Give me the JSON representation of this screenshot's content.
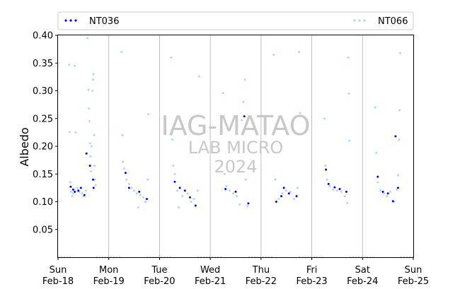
{
  "chart_data": {
    "type": "scatter",
    "ylabel": "Albedo",
    "ylim": [
      0.0,
      0.4
    ],
    "yticks": [
      "0.05",
      "0.10",
      "0.15",
      "0.20",
      "0.25",
      "0.30",
      "0.35",
      "0.40"
    ],
    "ytick_values": [
      0.05,
      0.1,
      0.15,
      0.2,
      0.25,
      0.3,
      0.35,
      0.4
    ],
    "xlim": [
      0,
      7
    ],
    "xticks": [
      {
        "day": "Sun",
        "date": "Feb-18"
      },
      {
        "day": "Mon",
        "date": "Feb-19"
      },
      {
        "day": "Tue",
        "date": "Feb-20"
      },
      {
        "day": "Wed",
        "date": "Feb-21"
      },
      {
        "day": "Thu",
        "date": "Feb-22"
      },
      {
        "day": "Fri",
        "date": "Feb-23"
      },
      {
        "day": "Sat",
        "date": "Feb-24"
      },
      {
        "day": "Sun",
        "date": "Feb-25"
      }
    ],
    "grid": "vertical",
    "legend_placement": "top",
    "watermark": [
      "IAG-MATAO",
      "LAB MICRO",
      "2024"
    ],
    "series": [
      {
        "name": "NT036",
        "color": "#0000ff",
        "marker": "dot",
        "points": [
          {
            "x": 0.25,
            "y": 0.127
          },
          {
            "x": 0.3,
            "y": 0.122
          },
          {
            "x": 0.33,
            "y": 0.118
          },
          {
            "x": 0.4,
            "y": 0.12
          },
          {
            "x": 0.45,
            "y": 0.125
          },
          {
            "x": 0.52,
            "y": 0.112
          },
          {
            "x": 0.56,
            "y": 0.187
          },
          {
            "x": 0.63,
            "y": 0.165
          },
          {
            "x": 0.69,
            "y": 0.14
          },
          {
            "x": 0.7,
            "y": 0.125
          },
          {
            "x": 1.33,
            "y": 0.152
          },
          {
            "x": 1.4,
            "y": 0.125
          },
          {
            "x": 1.6,
            "y": 0.118
          },
          {
            "x": 1.75,
            "y": 0.105
          },
          {
            "x": 2.3,
            "y": 0.136
          },
          {
            "x": 2.4,
            "y": 0.125
          },
          {
            "x": 2.5,
            "y": 0.12
          },
          {
            "x": 2.6,
            "y": 0.108
          },
          {
            "x": 2.71,
            "y": 0.093
          },
          {
            "x": 3.3,
            "y": 0.123
          },
          {
            "x": 3.5,
            "y": 0.118
          },
          {
            "x": 3.67,
            "y": 0.254
          },
          {
            "x": 3.75,
            "y": 0.097
          },
          {
            "x": 4.3,
            "y": 0.1
          },
          {
            "x": 4.4,
            "y": 0.11
          },
          {
            "x": 4.45,
            "y": 0.125
          },
          {
            "x": 4.55,
            "y": 0.115
          },
          {
            "x": 4.7,
            "y": 0.11
          },
          {
            "x": 5.28,
            "y": 0.158
          },
          {
            "x": 5.33,
            "y": 0.132
          },
          {
            "x": 5.45,
            "y": 0.126
          },
          {
            "x": 5.55,
            "y": 0.123
          },
          {
            "x": 5.68,
            "y": 0.118
          },
          {
            "x": 6.3,
            "y": 0.145
          },
          {
            "x": 6.4,
            "y": 0.118
          },
          {
            "x": 6.5,
            "y": 0.115
          },
          {
            "x": 6.6,
            "y": 0.101
          },
          {
            "x": 6.65,
            "y": 0.218
          },
          {
            "x": 6.7,
            "y": 0.125
          }
        ]
      },
      {
        "name": "NT066",
        "color": "#add8e6",
        "marker": "dot",
        "points": [
          {
            "x": 0.22,
            "y": 0.347
          },
          {
            "x": 0.23,
            "y": 0.226
          },
          {
            "x": 0.24,
            "y": 0.135
          },
          {
            "x": 0.26,
            "y": 0.118
          },
          {
            "x": 0.28,
            "y": 0.11
          },
          {
            "x": 0.3,
            "y": 0.115
          },
          {
            "x": 0.33,
            "y": 0.345
          },
          {
            "x": 0.35,
            "y": 0.225
          },
          {
            "x": 0.38,
            "y": 0.125
          },
          {
            "x": 0.42,
            "y": 0.118
          },
          {
            "x": 0.47,
            "y": 0.115
          },
          {
            "x": 0.5,
            "y": 0.11
          },
          {
            "x": 0.55,
            "y": 0.12
          },
          {
            "x": 0.58,
            "y": 0.395
          },
          {
            "x": 0.6,
            "y": 0.302
          },
          {
            "x": 0.61,
            "y": 0.268
          },
          {
            "x": 0.62,
            "y": 0.245
          },
          {
            "x": 0.63,
            "y": 0.205
          },
          {
            "x": 0.64,
            "y": 0.182
          },
          {
            "x": 0.65,
            "y": 0.155
          },
          {
            "x": 0.66,
            "y": 0.2
          },
          {
            "x": 0.68,
            "y": 0.3
          },
          {
            "x": 0.69,
            "y": 0.32
          },
          {
            "x": 0.7,
            "y": 0.33
          },
          {
            "x": 0.71,
            "y": 0.22
          },
          {
            "x": 0.72,
            "y": 0.165
          },
          {
            "x": 0.73,
            "y": 0.14
          },
          {
            "x": 0.74,
            "y": 0.13
          },
          {
            "x": 1.25,
            "y": 0.37
          },
          {
            "x": 1.27,
            "y": 0.22
          },
          {
            "x": 1.28,
            "y": 0.172
          },
          {
            "x": 1.3,
            "y": 0.16
          },
          {
            "x": 1.35,
            "y": 0.14
          },
          {
            "x": 1.4,
            "y": 0.132
          },
          {
            "x": 1.45,
            "y": 0.125
          },
          {
            "x": 1.5,
            "y": 0.12
          },
          {
            "x": 1.55,
            "y": 0.115
          },
          {
            "x": 1.58,
            "y": 0.09
          },
          {
            "x": 1.62,
            "y": 0.112
          },
          {
            "x": 1.68,
            "y": 0.108
          },
          {
            "x": 1.72,
            "y": 0.1
          },
          {
            "x": 1.77,
            "y": 0.14
          },
          {
            "x": 1.78,
            "y": 0.258
          },
          {
            "x": 2.23,
            "y": 0.36
          },
          {
            "x": 2.25,
            "y": 0.212
          },
          {
            "x": 2.27,
            "y": 0.165
          },
          {
            "x": 2.3,
            "y": 0.15
          },
          {
            "x": 2.35,
            "y": 0.12
          },
          {
            "x": 2.38,
            "y": 0.09
          },
          {
            "x": 2.45,
            "y": 0.11
          },
          {
            "x": 2.55,
            "y": 0.115
          },
          {
            "x": 2.62,
            "y": 0.1
          },
          {
            "x": 2.68,
            "y": 0.105
          },
          {
            "x": 2.75,
            "y": 0.12
          },
          {
            "x": 2.78,
            "y": 0.326
          },
          {
            "x": 3.25,
            "y": 0.296
          },
          {
            "x": 3.28,
            "y": 0.15
          },
          {
            "x": 3.32,
            "y": 0.128
          },
          {
            "x": 3.38,
            "y": 0.12
          },
          {
            "x": 3.45,
            "y": 0.115
          },
          {
            "x": 3.52,
            "y": 0.11
          },
          {
            "x": 3.58,
            "y": 0.095
          },
          {
            "x": 3.62,
            "y": 0.247
          },
          {
            "x": 3.65,
            "y": 0.28
          },
          {
            "x": 3.68,
            "y": 0.32
          },
          {
            "x": 3.7,
            "y": 0.14
          },
          {
            "x": 3.73,
            "y": 0.092
          },
          {
            "x": 4.25,
            "y": 0.365
          },
          {
            "x": 4.28,
            "y": 0.14
          },
          {
            "x": 4.35,
            "y": 0.105
          },
          {
            "x": 4.42,
            "y": 0.115
          },
          {
            "x": 4.5,
            "y": 0.12
          },
          {
            "x": 4.58,
            "y": 0.118
          },
          {
            "x": 4.65,
            "y": 0.105
          },
          {
            "x": 4.72,
            "y": 0.125
          },
          {
            "x": 4.75,
            "y": 0.37
          },
          {
            "x": 4.77,
            "y": 0.26
          },
          {
            "x": 5.25,
            "y": 0.25
          },
          {
            "x": 5.27,
            "y": 0.165
          },
          {
            "x": 5.3,
            "y": 0.14
          },
          {
            "x": 5.35,
            "y": 0.128
          },
          {
            "x": 5.42,
            "y": 0.122
          },
          {
            "x": 5.5,
            "y": 0.12
          },
          {
            "x": 5.58,
            "y": 0.118
          },
          {
            "x": 5.65,
            "y": 0.11
          },
          {
            "x": 5.7,
            "y": 0.098
          },
          {
            "x": 5.72,
            "y": 0.36
          },
          {
            "x": 5.73,
            "y": 0.295
          },
          {
            "x": 5.74,
            "y": 0.21
          },
          {
            "x": 6.25,
            "y": 0.27
          },
          {
            "x": 6.27,
            "y": 0.188
          },
          {
            "x": 6.3,
            "y": 0.135
          },
          {
            "x": 6.35,
            "y": 0.12
          },
          {
            "x": 6.42,
            "y": 0.115
          },
          {
            "x": 6.48,
            "y": 0.11
          },
          {
            "x": 6.55,
            "y": 0.118
          },
          {
            "x": 6.62,
            "y": 0.1
          },
          {
            "x": 6.67,
            "y": 0.122
          },
          {
            "x": 6.7,
            "y": 0.148
          },
          {
            "x": 6.72,
            "y": 0.212
          },
          {
            "x": 6.73,
            "y": 0.265
          },
          {
            "x": 6.74,
            "y": 0.368
          }
        ],
        "baseline_segments": [
          [
            0.0,
            0.25
          ],
          [
            0.75,
            1.25
          ],
          [
            1.75,
            2.25
          ],
          [
            2.75,
            3.25
          ],
          [
            3.75,
            4.25
          ],
          [
            4.75,
            5.25
          ],
          [
            5.75,
            6.25
          ],
          [
            6.75,
            7.0
          ]
        ],
        "baseline_value": 0.0
      }
    ]
  }
}
